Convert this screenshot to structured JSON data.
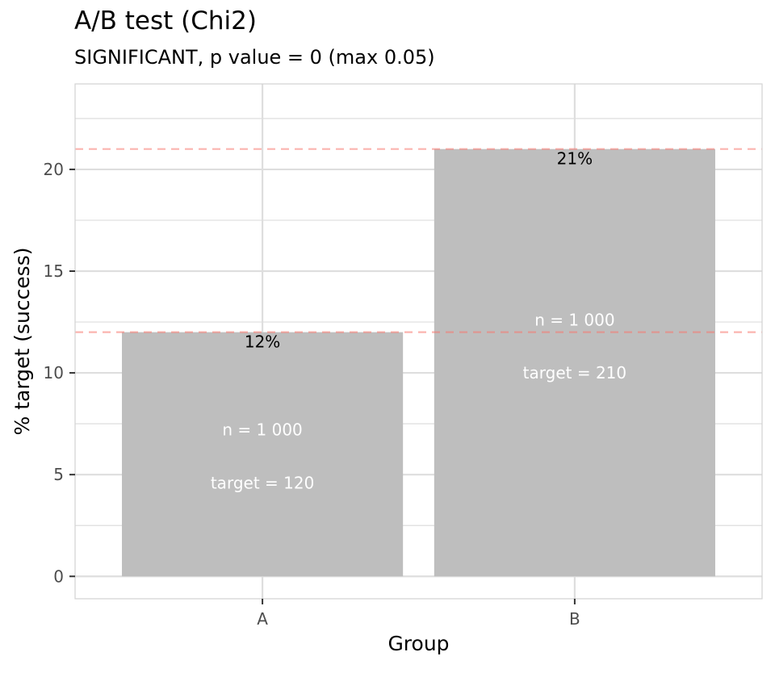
{
  "chart_data": {
    "type": "bar",
    "title": "A/B test (Chi2)",
    "subtitle": "SIGNIFICANT, p value = 0 (max 0.05)",
    "xlabel": "Group",
    "ylabel": "% target (success)",
    "categories": [
      "A",
      "B"
    ],
    "values": [
      12,
      21
    ],
    "value_labels": [
      "12%",
      "21%"
    ],
    "n_labels": [
      "n = 1 000",
      "n = 1 000"
    ],
    "target_labels": [
      "target = 120",
      "target = 210"
    ],
    "reference_lines": [
      12,
      21
    ],
    "ylim": [
      -1.1,
      24.2
    ],
    "yticks": [
      0,
      5,
      10,
      15,
      20
    ],
    "grid": true,
    "colors": {
      "bar": "#bebebe",
      "reference_line": "#f8766d",
      "grid": "#dedede",
      "panel_border": "#d3d3d3"
    }
  }
}
